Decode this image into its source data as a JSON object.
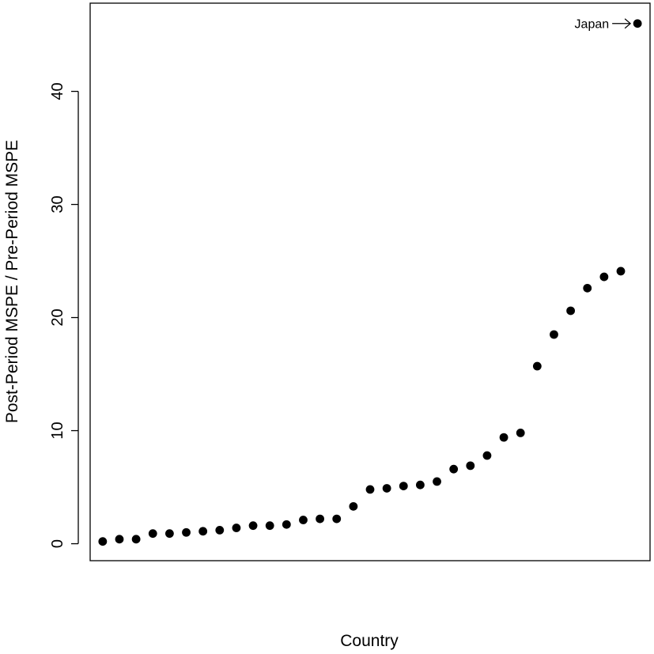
{
  "chart_data": {
    "type": "scatter",
    "title": "",
    "xlabel": "Country",
    "ylabel": "Post-Period MSPE / Pre-Period MSPE",
    "ylim": [
      -1.5,
      47.8
    ],
    "xlim": [
      0.25,
      33.75
    ],
    "yticks": [
      0,
      10,
      20,
      30,
      40
    ],
    "grid": false,
    "legend": "none",
    "point_color": "#000000",
    "x": [
      1,
      2,
      3,
      4,
      5,
      6,
      7,
      8,
      9,
      10,
      11,
      12,
      13,
      14,
      15,
      16,
      17,
      18,
      19,
      20,
      21,
      22,
      23,
      24,
      25,
      26,
      27,
      28,
      29,
      30,
      31,
      32,
      33
    ],
    "y": [
      0.2,
      0.4,
      0.4,
      0.9,
      0.9,
      1.0,
      1.1,
      1.2,
      1.4,
      1.6,
      1.6,
      1.7,
      2.1,
      2.2,
      2.2,
      3.3,
      4.8,
      4.9,
      5.1,
      5.2,
      5.5,
      6.6,
      6.9,
      7.8,
      9.4,
      9.8,
      15.7,
      18.5,
      20.6,
      22.6,
      23.6,
      24.1,
      46.0
    ],
    "annotations": [
      {
        "text": "Japan",
        "point_index": 32,
        "arrow": true
      }
    ]
  }
}
